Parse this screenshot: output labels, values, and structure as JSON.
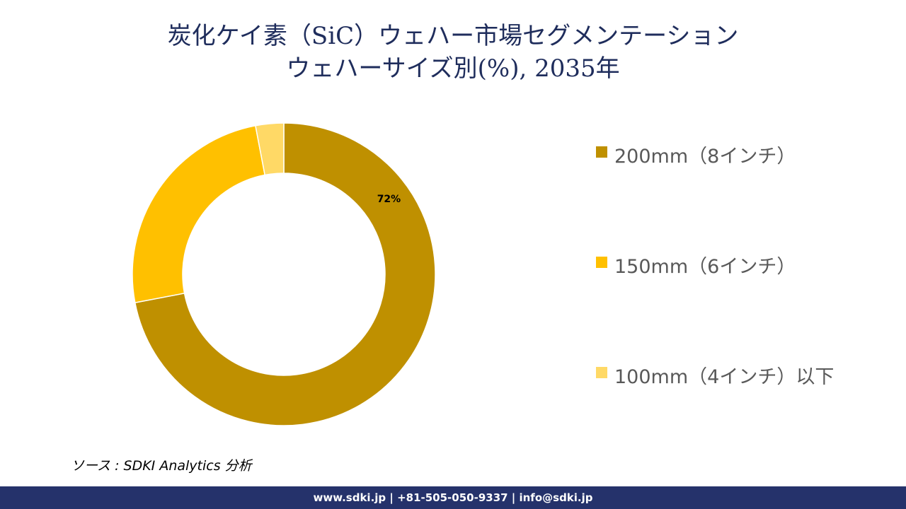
{
  "title_line1": "炭化ケイ素（SiC）ウェハー市場セグメンテーション",
  "title_line2": "ウェハーサイズ別(%), 2035年",
  "source": "ソース : SDKI Analytics 分析",
  "footer": "www.sdki.jp | +81-505-050-9337 | info@sdki.jp",
  "chart_data": {
    "type": "donut",
    "categories": [
      "200mm（8インチ）",
      "150mm（6インチ）",
      "100mm（4インチ）以下"
    ],
    "values": [
      72,
      25,
      3
    ],
    "colors": [
      "#bf9000",
      "#ffc000",
      "#ffd966"
    ],
    "data_labels": [
      "72%",
      "",
      ""
    ],
    "legend_position": "right"
  }
}
